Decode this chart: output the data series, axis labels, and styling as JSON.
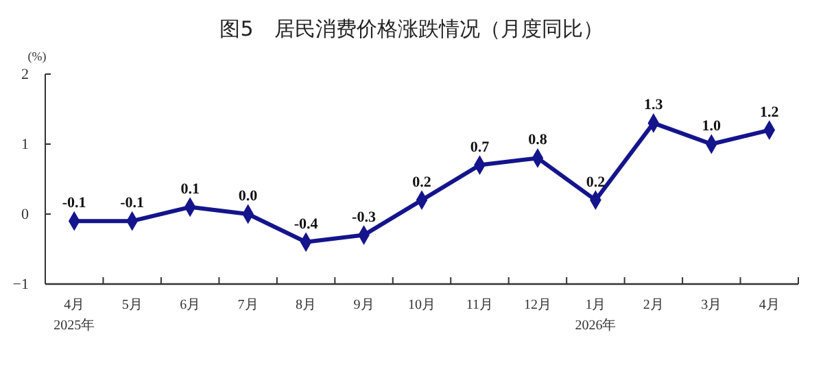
{
  "chart_data": {
    "type": "line",
    "title": "图5　居民消费价格涨跌情况（月度同比）",
    "ylabel": "(%)",
    "categories": [
      "4月\n2025年",
      "5月",
      "6月",
      "7月",
      "8月",
      "9月",
      "10月",
      "11月",
      "12月",
      "1月\n2026年",
      "2月",
      "3月",
      "4月"
    ],
    "series": [
      {
        "color": "#14148c",
        "values": [
          -0.1,
          -0.1,
          0.1,
          0.0,
          -0.4,
          -0.3,
          0.2,
          0.7,
          0.8,
          0.2,
          1.3,
          1.0,
          1.2
        ],
        "value_labels": [
          "-0.1",
          "-0.1",
          "0.1",
          "0.0",
          "-0.4",
          "-0.3",
          "0.2",
          "0.7",
          "0.8",
          "0.2",
          "1.3",
          "1.0",
          "1.2"
        ]
      }
    ],
    "ylim": [
      -1,
      2
    ],
    "yticks": [
      {
        "value": -1,
        "label": "−1"
      },
      0,
      1,
      2
    ],
    "marker": "diamond",
    "line_style": "solid",
    "grid": false
  }
}
